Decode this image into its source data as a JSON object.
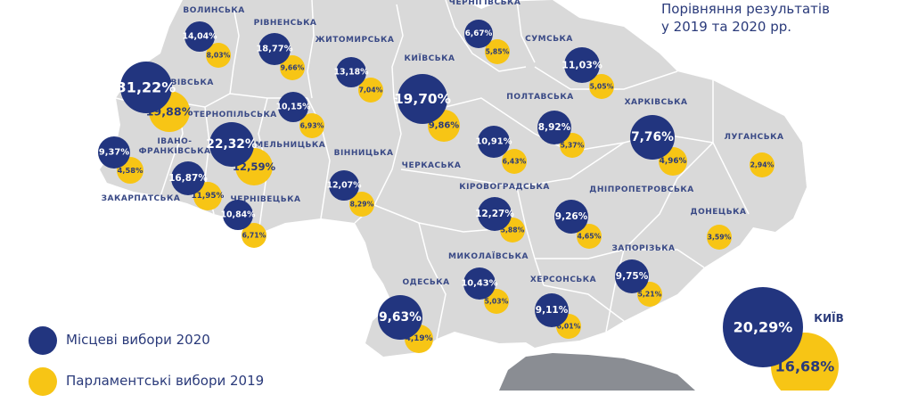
{
  "title": {
    "line1": "Порівняння результатів",
    "line2": "у 2019 та 2020 рр."
  },
  "colors": {
    "local_2020": "#22357f",
    "parliament_2019": "#f7c515",
    "land": "#d9d9d9",
    "crimea": "#8a8d93",
    "border": "#ffffff"
  },
  "legend": [
    {
      "label": "Місцеві вибори 2020",
      "color": "#22357f"
    },
    {
      "label": "Парламентські вибори 2019",
      "color": "#f7c515"
    }
  ],
  "regions": [
    {
      "id": "volyn",
      "name": "ВОЛИНСЬКА",
      "local_2020": "14,04%",
      "parliament_2019": "8,03%"
    },
    {
      "id": "rivne",
      "name": "РІВНЕНСЬКА",
      "local_2020": "18,77%",
      "parliament_2019": "9,66%"
    },
    {
      "id": "zhytomyr",
      "name": "ЖИТОМИРСЬКА",
      "local_2020": "13,18%",
      "parliament_2019": "7,04%"
    },
    {
      "id": "kyiv-oblast",
      "name": "КИЇВСЬКА",
      "local_2020": "19,70%",
      "parliament_2019": "9,86%"
    },
    {
      "id": "chernihiv",
      "name": "ЧЕРНІГІВСЬКА",
      "local_2020": "6,67%",
      "parliament_2019": "5,85%"
    },
    {
      "id": "sumy",
      "name": "СУМСЬКА",
      "local_2020": "11,03%",
      "parliament_2019": "5,05%"
    },
    {
      "id": "lviv",
      "name": "ЛЬВІВСЬКА",
      "local_2020": "31,22%",
      "parliament_2019": "19,88%"
    },
    {
      "id": "ternopil",
      "name": "ТЕРНОПІЛЬСЬКА",
      "local_2020": "22,32%",
      "parliament_2019": "12,59%"
    },
    {
      "id": "khmelnytskyi",
      "name": "ХМЕЛЬНИЦЬКА",
      "local_2020": "10,15%",
      "parliament_2019": "6,93%"
    },
    {
      "id": "vinnytsia",
      "name": "ВІННИЦЬКА",
      "local_2020": "12,07%",
      "parliament_2019": "8,29%"
    },
    {
      "id": "ivano-frankivsk",
      "name": "ІВАНО-ФРАНКІВСЬКА",
      "local_2020": "16,87%",
      "parliament_2019": "11,95%"
    },
    {
      "id": "zakarpattia",
      "name": "ЗАКАРПАТСЬКА",
      "local_2020": "9,37%",
      "parliament_2019": "4,58%"
    },
    {
      "id": "chernivtsi",
      "name": "ЧЕРНІВЕЦЬКА",
      "local_2020": "10,84%",
      "parliament_2019": "6,71%"
    },
    {
      "id": "cherkasy",
      "name": "ЧЕРКАСЬКА",
      "local_2020": "10,91%",
      "parliament_2019": "6,43%"
    },
    {
      "id": "poltava",
      "name": "ПОЛТАВСЬКА",
      "local_2020": "8,92%",
      "parliament_2019": "5,37%"
    },
    {
      "id": "kharkiv",
      "name": "ХАРКІВСЬКА",
      "local_2020": "7,76%",
      "parliament_2019": "4,96%"
    },
    {
      "id": "luhansk",
      "name": "ЛУГАНСЬКА",
      "local_2020": "",
      "parliament_2019": "2,94%"
    },
    {
      "id": "kirovohrad",
      "name": "КІРОВОГРАДСЬКА",
      "local_2020": "12,27%",
      "parliament_2019": "5,88%"
    },
    {
      "id": "dnipro",
      "name": "ДНІПРОПЕТРОВСЬКА",
      "local_2020": "9,26%",
      "parliament_2019": "4,65%"
    },
    {
      "id": "donetsk",
      "name": "ДОНЕЦЬКА",
      "local_2020": "",
      "parliament_2019": "3,59%"
    },
    {
      "id": "mykolaiv",
      "name": "МИКОЛАЇВСЬКА",
      "local_2020": "10,43%",
      "parliament_2019": "5,03%"
    },
    {
      "id": "odesa",
      "name": "ОДЕСЬКА",
      "local_2020": "9,63%",
      "parliament_2019": "4,19%"
    },
    {
      "id": "kherson",
      "name": "ХЕРСОНСЬКА",
      "local_2020": "9,11%",
      "parliament_2019": "6,01%"
    },
    {
      "id": "zaporizhzhia",
      "name": "ЗАПОРІЗЬКА",
      "local_2020": "9,75%",
      "parliament_2019": "5,21%"
    }
  ],
  "kyiv_city": {
    "name": "КИЇВ",
    "local_2020": "20,29%",
    "parliament_2019": "16,68%"
  }
}
